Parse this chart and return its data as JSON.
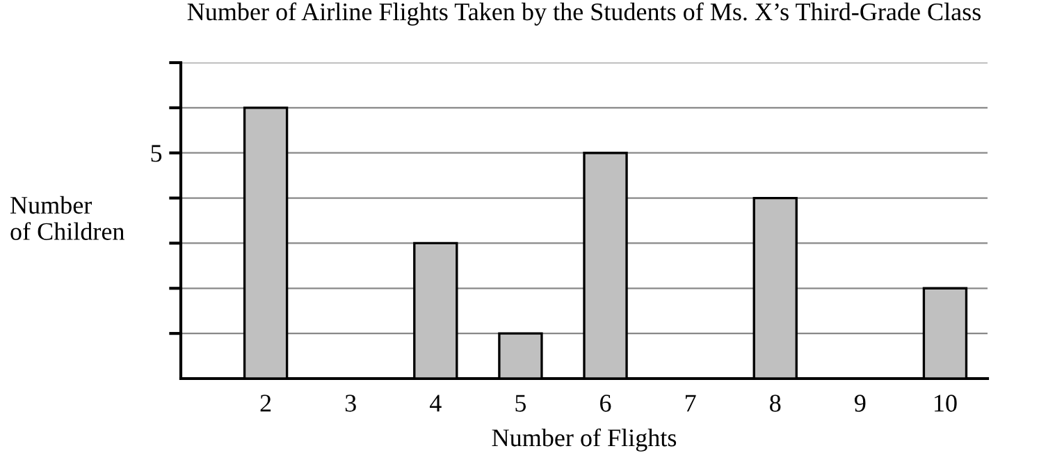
{
  "chart_data": {
    "type": "bar",
    "title": "Number of Airline Flights Taken by the Students of Ms. X’s Third-Grade Class",
    "xlabel": "Number of Flights",
    "ylabel": "Number\nof Children",
    "x": [
      2,
      3,
      4,
      5,
      6,
      7,
      8,
      9,
      10
    ],
    "values": [
      6,
      0,
      3,
      1,
      5,
      0,
      4,
      0,
      2
    ],
    "color": "#c0c0c0",
    "xlim": [
      1,
      10.5
    ],
    "xticks": [
      2,
      3,
      4,
      5,
      6,
      7,
      8,
      9,
      10
    ],
    "ylim": [
      0,
      7
    ],
    "yticks": [
      {
        "value": 1,
        "label": null
      },
      {
        "value": 2,
        "label": null
      },
      {
        "value": 3,
        "label": null
      },
      {
        "value": 4,
        "label": null
      },
      5,
      {
        "value": 6,
        "label": null
      },
      {
        "value": 7,
        "label": null
      }
    ],
    "grid": "y",
    "legend": false
  }
}
